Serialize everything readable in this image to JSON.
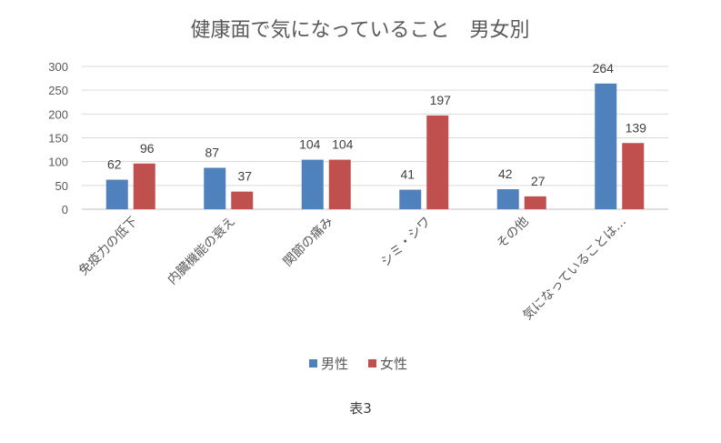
{
  "chart_data": {
    "type": "bar",
    "title": "健康面で気になっていること　男女別",
    "categories": [
      "免疫力の低下",
      "内臓機能の衰え",
      "関節の痛み",
      "シミ・シワ",
      "その他",
      "気になっていることは…"
    ],
    "series": [
      {
        "name": "男性",
        "color": "#4f81bd",
        "values": [
          62,
          87,
          104,
          41,
          42,
          264
        ]
      },
      {
        "name": "女性",
        "color": "#c0504d",
        "values": [
          96,
          37,
          104,
          197,
          27,
          139
        ]
      }
    ],
    "ylim": [
      0,
      300
    ],
    "yticks": [
      0,
      50,
      100,
      150,
      200,
      250,
      300
    ],
    "grid": true,
    "legend": "bottom"
  },
  "caption": "表3"
}
